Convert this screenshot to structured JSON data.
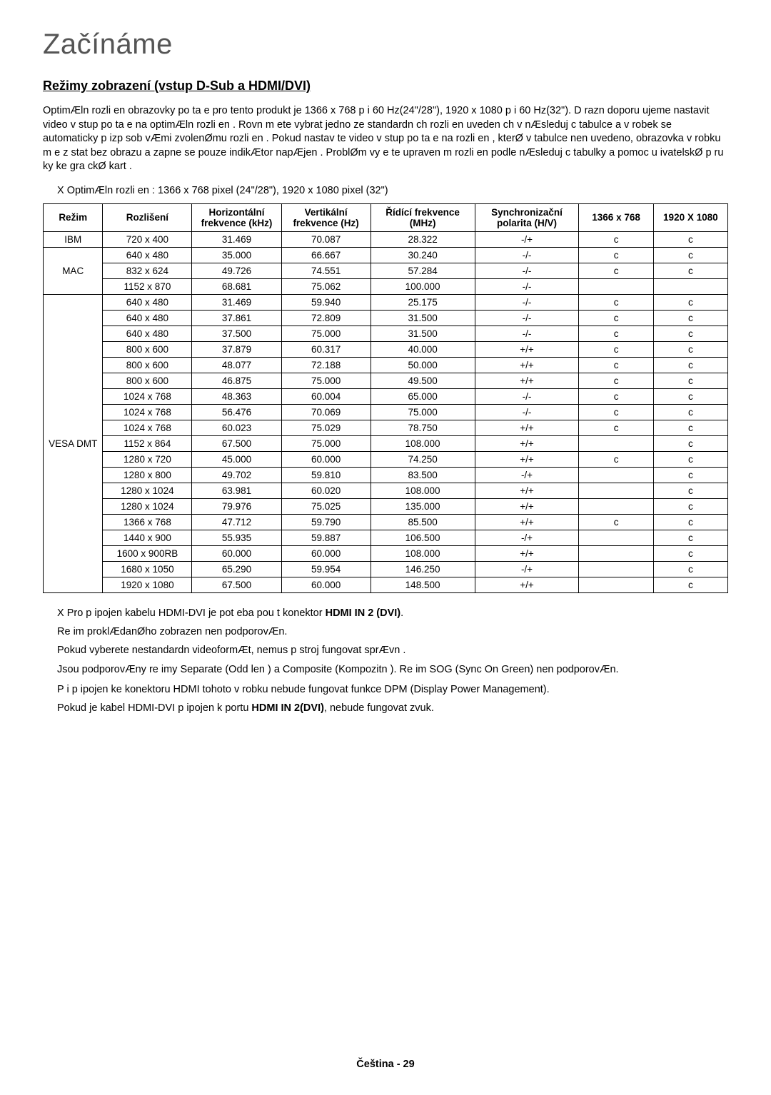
{
  "section_title": "Začínáme",
  "subsection_title": "Režimy zobrazení (vstup D-Sub a HDMI/DVI)",
  "intro_text": "OptimÆln  rozli en  obrazovky po  ta e pro tento produkt je 1366 x 768 p i 60 Hz(24\"/28\"), 1920 x 1080 p i 60 Hz(32\"). D razn  doporu ujeme nastavit video v stup po  ta e na optimÆln  rozli en . Rovn   m  ete vybrat jedno ze standardn ch rozli en  uveden ch v nÆsleduj c  tabulce a v robek se automaticky p izp sob  vÆmi zvolenØmu rozli en . Pokud nastav te video v stup po  ta e na rozli en , kterØ v tabulce nen  uvedeno, obrazovka v robku m  e z stat bez obrazu a zapne se pouze indikÆtor napÆjen . ProblØm vy e  te upraven m rozli en  podle nÆsleduj c  tabulky a pomoc  u ivatelskØ p  ru ky ke gra ckØ kart .",
  "optimal_note": "X OptimÆln  rozli en : 1366 x 768 pixel (24\"/28\"), 1920 x 1080 pixel (32\")",
  "table": {
    "headers": [
      "Režim",
      "Rozlišení",
      "Horizontální frekvence (kHz)",
      "Vertikální frekvence (Hz)",
      "Řídící frekvence (MHz)",
      "Synchronizační polarita (H/V)",
      "1366 x 768",
      "1920 X 1080"
    ],
    "groups": [
      {
        "mode": "IBM",
        "rowspan": 1,
        "rows": [
          [
            "720 x 400",
            "31.469",
            "70.087",
            "28.322",
            "-/+",
            "c",
            "c"
          ]
        ]
      },
      {
        "mode": "MAC",
        "rowspan": 3,
        "rows": [
          [
            "640 x 480",
            "35.000",
            "66.667",
            "30.240",
            "-/-",
            "c",
            "c"
          ],
          [
            "832 x 624",
            "49.726",
            "74.551",
            "57.284",
            "-/-",
            "c",
            "c"
          ],
          [
            "1152 x 870",
            "68.681",
            "75.062",
            "100.000",
            "-/-",
            "",
            ""
          ]
        ]
      },
      {
        "mode": "VESA DMT",
        "rowspan": 19,
        "rows": [
          [
            "640 x 480",
            "31.469",
            "59.940",
            "25.175",
            "-/-",
            "c",
            "c"
          ],
          [
            "640 x 480",
            "37.861",
            "72.809",
            "31.500",
            "-/-",
            "c",
            "c"
          ],
          [
            "640 x 480",
            "37.500",
            "75.000",
            "31.500",
            "-/-",
            "c",
            "c"
          ],
          [
            "800 x 600",
            "37.879",
            "60.317",
            "40.000",
            "+/+",
            "c",
            "c"
          ],
          [
            "800 x 600",
            "48.077",
            "72.188",
            "50.000",
            "+/+",
            "c",
            "c"
          ],
          [
            "800 x 600",
            "46.875",
            "75.000",
            "49.500",
            "+/+",
            "c",
            "c"
          ],
          [
            "1024 x 768",
            "48.363",
            "60.004",
            "65.000",
            "-/-",
            "c",
            "c"
          ],
          [
            "1024 x 768",
            "56.476",
            "70.069",
            "75.000",
            "-/-",
            "c",
            "c"
          ],
          [
            "1024 x 768",
            "60.023",
            "75.029",
            "78.750",
            "+/+",
            "c",
            "c"
          ],
          [
            "1152 x 864",
            "67.500",
            "75.000",
            "108.000",
            "+/+",
            "",
            "c"
          ],
          [
            "1280 x 720",
            "45.000",
            "60.000",
            "74.250",
            "+/+",
            "c",
            "c"
          ],
          [
            "1280 x 800",
            "49.702",
            "59.810",
            "83.500",
            "-/+",
            "",
            "c"
          ],
          [
            "1280 x 1024",
            "63.981",
            "60.020",
            "108.000",
            "+/+",
            "",
            "c"
          ],
          [
            "1280 x 1024",
            "79.976",
            "75.025",
            "135.000",
            "+/+",
            "",
            "c"
          ],
          [
            "1366 x 768",
            "47.712",
            "59.790",
            "85.500",
            "+/+",
            "c",
            "c"
          ],
          [
            "1440 x 900",
            "55.935",
            "59.887",
            "106.500",
            "-/+",
            "",
            "c"
          ],
          [
            "1600 x 900RB",
            "60.000",
            "60.000",
            "108.000",
            "+/+",
            "",
            "c"
          ],
          [
            "1680 x 1050",
            "65.290",
            "59.954",
            "146.250",
            "-/+",
            "",
            "c"
          ],
          [
            "1920 x 1080",
            "67.500",
            "60.000",
            "148.500",
            "+/+",
            "",
            "c"
          ]
        ]
      }
    ]
  },
  "note1_prefix": "X Pro p ipojen  kabelu HDMI-DVI je pot eba pou  t konektor",
  "note1_bold": "HDMI IN 2 (DVI)",
  "note1_suffix": ".",
  "note2": "Re im proklÆdanØho zobrazen  nen  podporovÆn.",
  "note3": "Pokud vyberete nestandardn  videoformÆt, nemus  p  stroj fungovat sprÆvn .",
  "note4": "Jsou podporovÆny re imy Separate (Odd len ) a Composite (Kompozitn ). Re im SOG (Sync On Green) nen  podporovÆn.",
  "note5": "P i p ipojen  ke konektoru HDMI tohoto v robku nebude fungovat funkce DPM (Display Power Management).",
  "note6_prefix": "Pokud je kabel HDMI-DVI p ipojen k portu",
  "note6_bold": "HDMI IN 2(DVI)",
  "note6_suffix": ", nebude fungovat zvuk.",
  "footer": "Čeština - 29"
}
